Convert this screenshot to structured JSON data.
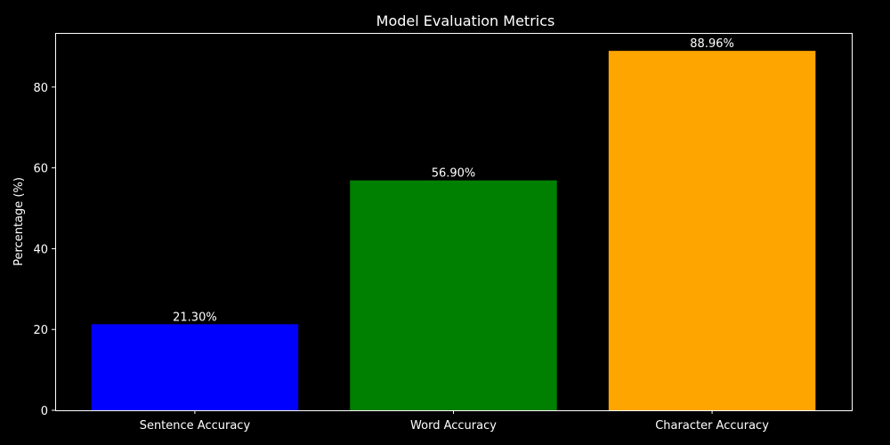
{
  "chart_data": {
    "type": "bar",
    "title": "Model Evaluation Metrics",
    "xlabel": "",
    "ylabel": "Percentage (%)",
    "categories": [
      "Sentence Accuracy",
      "Word Accuracy",
      "Character Accuracy"
    ],
    "values": [
      21.3,
      56.9,
      88.96
    ],
    "data_labels": [
      "21.30%",
      "56.90%",
      "88.96%"
    ],
    "colors": [
      "#0000ff",
      "#008000",
      "#ffa500"
    ],
    "ylim": [
      0,
      93.4
    ],
    "yticks": [
      0,
      20,
      40,
      60,
      80
    ],
    "grid": false,
    "legend": "none",
    "background": "#000000",
    "foreground": "#ffffff"
  }
}
